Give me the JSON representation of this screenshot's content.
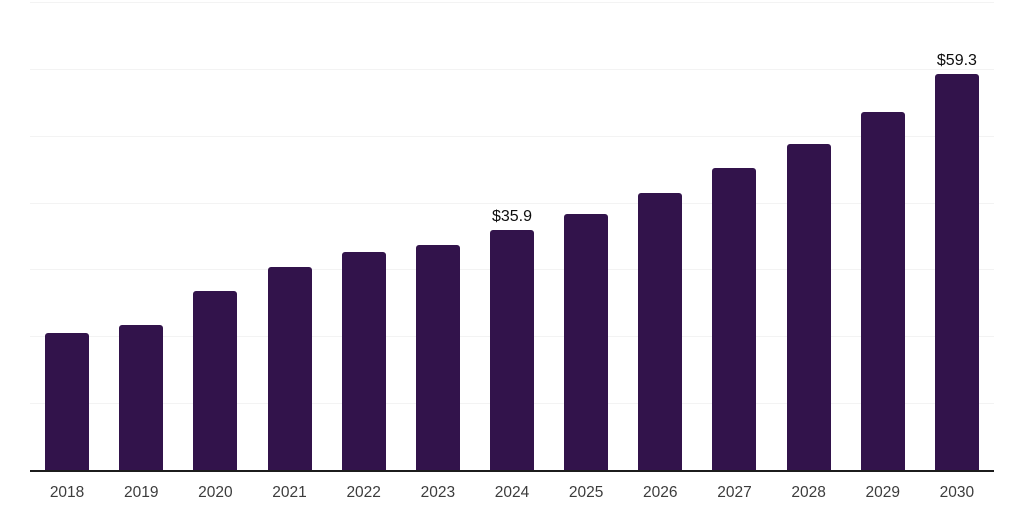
{
  "chart_data": {
    "type": "bar",
    "title": "",
    "xlabel": "",
    "ylabel": "",
    "categories": [
      "2018",
      "2019",
      "2020",
      "2021",
      "2022",
      "2023",
      "2024",
      "2025",
      "2026",
      "2027",
      "2028",
      "2029",
      "2030"
    ],
    "values": [
      20.5,
      21.7,
      26.7,
      30.4,
      32.6,
      33.7,
      35.9,
      38.3,
      41.4,
      45.1,
      48.8,
      53.5,
      59.3
    ],
    "annotations": [
      {
        "category": "2024",
        "text": "$35.9"
      },
      {
        "category": "2030",
        "text": "$59.3"
      }
    ],
    "ylim": [
      0,
      70
    ],
    "grid": true,
    "gridline_values": [
      10,
      20,
      30,
      40,
      50,
      60,
      70
    ],
    "legend": false,
    "colors": {
      "bar": "#32134b",
      "axis": "#1c1c1c",
      "gridline": "#f3f3f3",
      "tick_label": "#3c3c3c",
      "annotation": "#0d0d0d",
      "background": "#ffffff"
    }
  }
}
